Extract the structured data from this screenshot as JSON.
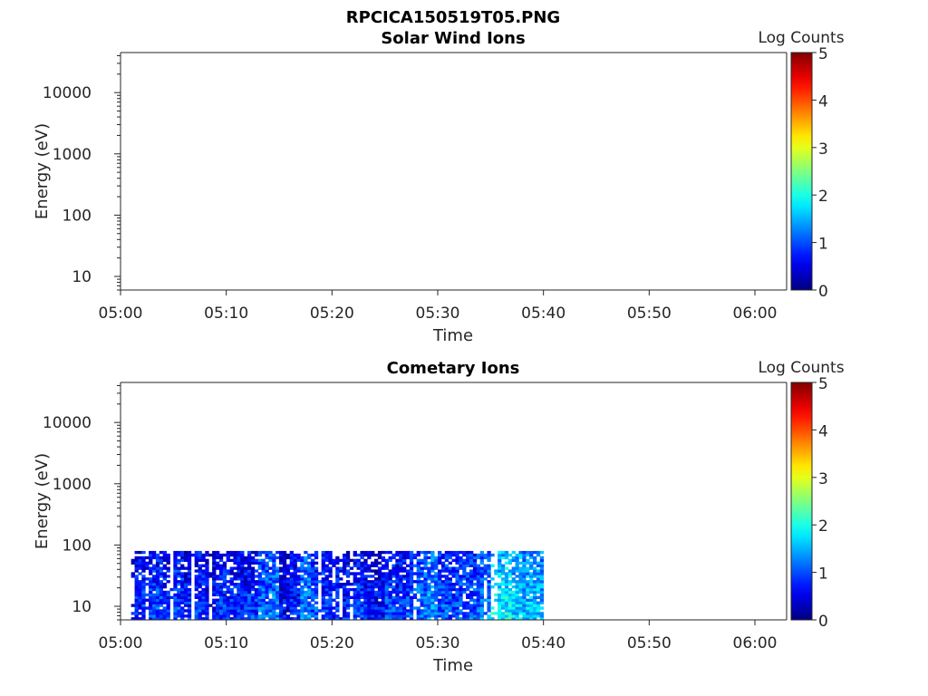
{
  "figure_title": "RPCICA150519T05.PNG",
  "colorbar": {
    "label": "Log Counts",
    "ticks": [
      "0",
      "1",
      "2",
      "3",
      "4",
      "5"
    ],
    "colormap": "jet",
    "range": [
      0,
      5
    ]
  },
  "chart_data": [
    {
      "type": "heatmap",
      "title": "Solar Wind Ions",
      "xlabel": "Time",
      "ylabel": "Energy (eV)",
      "y_scale": "log",
      "ylim": [
        6,
        45000
      ],
      "xlim": [
        "05:00",
        "06:03"
      ],
      "x_ticks": [
        "05:00",
        "05:10",
        "05:20",
        "05:30",
        "05:40",
        "05:50",
        "06:00"
      ],
      "y_ticks": [
        "10",
        "100",
        "1000",
        "10000"
      ],
      "data": []
    },
    {
      "type": "heatmap",
      "title": "Cometary Ions",
      "xlabel": "Time",
      "ylabel": "Energy (eV)",
      "y_scale": "log",
      "ylim": [
        6,
        45000
      ],
      "xlim": [
        "05:00",
        "06:03"
      ],
      "x_ticks": [
        "05:00",
        "05:10",
        "05:20",
        "05:30",
        "05:40",
        "05:50",
        "06:00"
      ],
      "y_ticks": [
        "10",
        "100",
        "1000",
        "10000"
      ],
      "data_time_range": [
        "05:01",
        "05:40"
      ],
      "data_energy_range": [
        6,
        80
      ],
      "log_counts_by_minute": [
        0.8,
        0.9,
        1.0,
        0.9,
        1.0,
        0.8,
        0.9,
        0.7,
        0.9,
        0.9,
        0.8,
        0.9,
        1.2,
        1.3,
        0.6,
        0.8,
        1.3,
        1.0,
        0.9,
        0.9,
        0.8,
        0.9,
        0.8,
        0.7,
        1.0,
        0.9,
        1.0,
        1.2,
        1.4,
        1.1,
        1.0,
        1.1,
        1.1,
        1.3,
        1.8,
        1.9,
        1.7,
        1.6,
        1.6
      ]
    }
  ]
}
